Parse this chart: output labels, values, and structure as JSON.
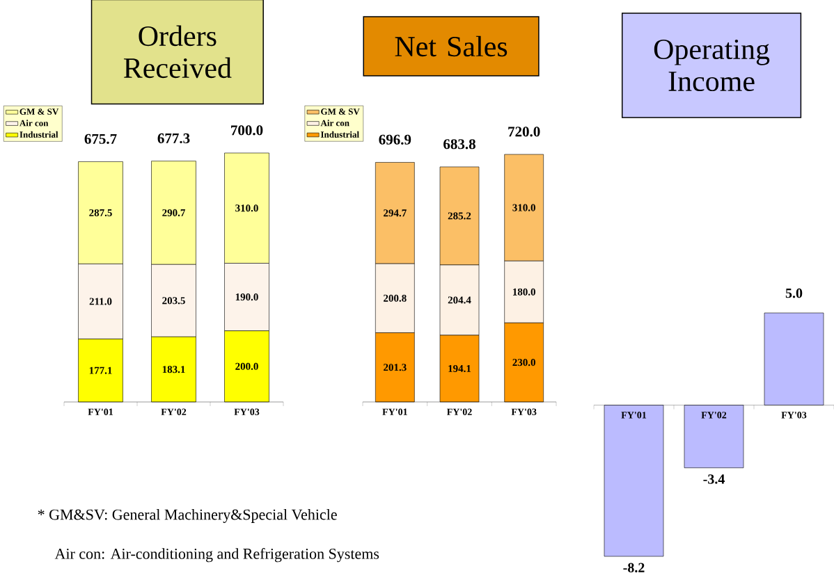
{
  "chart_data": [
    {
      "type": "bar",
      "title": "Orders Received",
      "stacked": true,
      "categories": [
        "FY'01",
        "FY'02",
        "FY'03"
      ],
      "series": [
        {
          "name": "Industrial",
          "color": "#ffff00",
          "values": [
            177.1,
            183.1,
            200.0
          ],
          "value_labels": [
            "177.1",
            "183.1",
            "200.0"
          ]
        },
        {
          "name": "Air con",
          "color": "#fdf3ea",
          "values": [
            211.0,
            203.5,
            190.0
          ],
          "value_labels": [
            "211.0",
            "203.5",
            "190.0"
          ]
        },
        {
          "name": "GM & SV",
          "color": "#ffff99",
          "values": [
            287.5,
            290.7,
            310.0
          ],
          "value_labels": [
            "287.5",
            "290.7",
            "310.0"
          ]
        }
      ],
      "totals": [
        "675.7",
        "677.3",
        "700.0"
      ],
      "legend": "top left",
      "annotations": [
        "* GM&SV: General Machinery&Special Vehicle",
        "Air con: Air-conditioning and Refrigeration Systems"
      ]
    },
    {
      "type": "bar",
      "title": "Net Sales",
      "stacked": true,
      "categories": [
        "FY'01",
        "FY'02",
        "FY'03"
      ],
      "series": [
        {
          "name": "Industrial",
          "color": "#ff9900",
          "values": [
            201.3,
            194.1,
            230.0
          ],
          "value_labels": [
            "201.3",
            "194.1",
            "230.0"
          ]
        },
        {
          "name": "Air con",
          "color": "#fdf1e4",
          "values": [
            200.8,
            204.4,
            180.0
          ],
          "value_labels": [
            "200.8",
            "204.4",
            "180.0"
          ]
        },
        {
          "name": "GM & SV",
          "color": "#fbbf66",
          "values": [
            294.7,
            285.2,
            310.0
          ],
          "value_labels": [
            "294.7",
            "285.2",
            "310.0"
          ]
        }
      ],
      "totals": [
        "696.9",
        "683.8",
        "720.0"
      ],
      "legend": "top left"
    },
    {
      "type": "bar",
      "title": "Operating Income",
      "categories": [
        "FY'01",
        "FY'02",
        "FY'03"
      ],
      "values": [
        -8.2,
        -3.4,
        5.0
      ],
      "value_labels": [
        "-8.2",
        "-3.4",
        "5.0"
      ],
      "color": "#bbbbff"
    }
  ]
}
